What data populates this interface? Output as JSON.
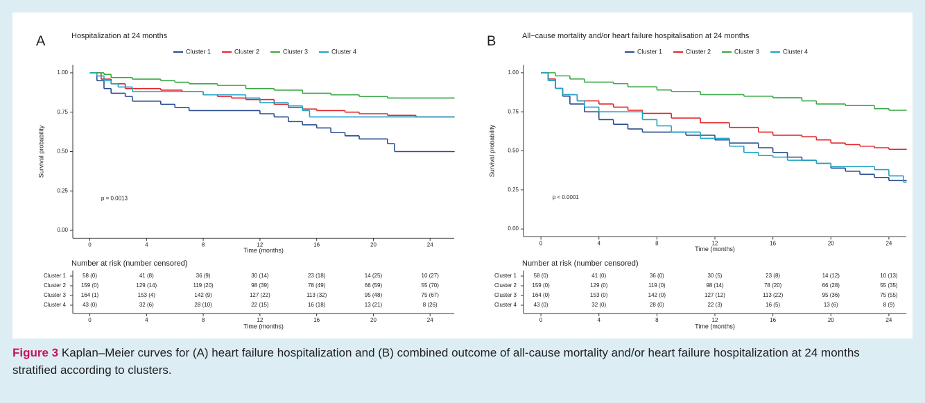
{
  "chart_data": [
    {
      "type": "line",
      "step": true,
      "panel": "A",
      "title": "Hospitalization at 24 months",
      "x_label": "Time (months)",
      "y_label": "Survival probability",
      "annotation": "p = 0.0013",
      "legend": "top",
      "xlim": [
        -1.2,
        25.7
      ],
      "ylim": [
        -0.05,
        1.05
      ],
      "xticks": [
        0,
        4,
        8,
        12,
        16,
        20,
        24
      ],
      "yticks": [
        {
          "value": 0,
          "label": "0.00"
        },
        {
          "value": 0.25,
          "label": "0.25"
        },
        {
          "value": 0.5,
          "label": "0.50"
        },
        {
          "value": 0.75,
          "label": "0.75"
        },
        {
          "value": 1,
          "label": "1.00"
        }
      ],
      "series": [
        {
          "name": "Cluster 1",
          "color": "#2a4d8f",
          "x": [
            0,
            0.5,
            1,
            1.5,
            2.5,
            3,
            5,
            6,
            7,
            12,
            13,
            14,
            15,
            16,
            17,
            18,
            19,
            21,
            21.5,
            25.7
          ],
          "values": [
            1,
            0.95,
            0.9,
            0.87,
            0.85,
            0.82,
            0.8,
            0.78,
            0.76,
            0.74,
            0.72,
            0.69,
            0.67,
            0.65,
            0.62,
            0.6,
            0.58,
            0.55,
            0.5,
            0.5
          ]
        },
        {
          "name": "Cluster 2",
          "color": "#e3262b",
          "x": [
            0,
            0.8,
            1.5,
            2.5,
            5,
            6.5,
            8,
            9,
            10,
            11,
            13,
            14,
            15,
            16,
            18,
            19,
            21,
            23,
            25.7
          ],
          "values": [
            1,
            0.96,
            0.93,
            0.9,
            0.89,
            0.88,
            0.86,
            0.85,
            0.84,
            0.83,
            0.8,
            0.78,
            0.77,
            0.76,
            0.75,
            0.74,
            0.73,
            0.72,
            0.72
          ]
        },
        {
          "name": "Cluster 3",
          "color": "#3aa845",
          "x": [
            0,
            1,
            1.5,
            3,
            5,
            6,
            7,
            9,
            11,
            13,
            15,
            17,
            19,
            21,
            25.7
          ],
          "values": [
            1,
            0.99,
            0.97,
            0.96,
            0.95,
            0.94,
            0.93,
            0.92,
            0.9,
            0.89,
            0.87,
            0.86,
            0.85,
            0.84,
            0.84
          ]
        },
        {
          "name": "Cluster 4",
          "color": "#1fa3c7",
          "x": [
            0,
            0.5,
            1,
            1.5,
            2,
            3,
            8,
            11,
            12,
            14,
            15,
            15.5,
            25.7
          ],
          "values": [
            1,
            0.98,
            0.95,
            0.93,
            0.91,
            0.88,
            0.86,
            0.84,
            0.81,
            0.79,
            0.76,
            0.72,
            0.72
          ]
        }
      ],
      "risk_table": {
        "title": "Number at risk (number censored)",
        "rows": [
          [
            "58 (0)",
            "41 (8)",
            "36 (9)",
            "30 (14)",
            "23 (18)",
            "14 (25)",
            "10 (27)"
          ],
          [
            "159 (0)",
            "129 (14)",
            "119 (20)",
            "98 (39)",
            "78 (49)",
            "66 (59)",
            "55 (70)"
          ],
          [
            "164 (1)",
            "153 (4)",
            "142 (9)",
            "127 (22)",
            "113 (32)",
            "95 (48)",
            "75 (67)"
          ],
          [
            "43 (0)",
            "32 (6)",
            "28 (10)",
            "22 (15)",
            "16 (18)",
            "13 (21)",
            "8 (26)"
          ]
        ]
      }
    },
    {
      "type": "line",
      "step": true,
      "panel": "B",
      "title": "All−cause mortality and/or heart failure hospitalisation at 24 months",
      "x_label": "Time (months)",
      "y_label": "Survival probability",
      "annotation": "p < 0.0001",
      "legend": "top",
      "xlim": [
        -1.2,
        25.2
      ],
      "ylim": [
        -0.05,
        1.05
      ],
      "xticks": [
        0,
        4,
        8,
        12,
        16,
        20,
        24
      ],
      "yticks": [
        {
          "value": 0,
          "label": "0.00"
        },
        {
          "value": 0.25,
          "label": "0.25"
        },
        {
          "value": 0.5,
          "label": "0.50"
        },
        {
          "value": 0.75,
          "label": "0.75"
        },
        {
          "value": 1,
          "label": "1.00"
        }
      ],
      "series": [
        {
          "name": "Cluster 1",
          "color": "#2a4d8f",
          "x": [
            0,
            0.5,
            1,
            1.5,
            2,
            3,
            4,
            5,
            6,
            7,
            10,
            12,
            13,
            15,
            16,
            17,
            18,
            19,
            20,
            21,
            22,
            23,
            24,
            25.2
          ],
          "values": [
            1,
            0.95,
            0.9,
            0.85,
            0.8,
            0.75,
            0.7,
            0.67,
            0.64,
            0.62,
            0.6,
            0.57,
            0.55,
            0.52,
            0.49,
            0.46,
            0.44,
            0.42,
            0.39,
            0.37,
            0.35,
            0.33,
            0.31,
            0.31
          ]
        },
        {
          "name": "Cluster 2",
          "color": "#e3262b",
          "x": [
            0,
            0.5,
            1,
            1.5,
            2.5,
            4,
            5,
            6,
            7,
            9,
            11,
            13,
            15,
            16,
            18,
            19,
            20,
            21,
            22,
            23,
            24,
            25.2
          ],
          "values": [
            1,
            0.96,
            0.9,
            0.86,
            0.82,
            0.8,
            0.78,
            0.76,
            0.74,
            0.71,
            0.68,
            0.65,
            0.62,
            0.6,
            0.59,
            0.57,
            0.55,
            0.54,
            0.53,
            0.52,
            0.51,
            0.51
          ]
        },
        {
          "name": "Cluster 3",
          "color": "#3aa845",
          "x": [
            0,
            1,
            2,
            3,
            5,
            6,
            8,
            9,
            11,
            14,
            16,
            18,
            19,
            21,
            23,
            24,
            25.2
          ],
          "values": [
            1,
            0.98,
            0.96,
            0.94,
            0.93,
            0.91,
            0.89,
            0.88,
            0.86,
            0.85,
            0.84,
            0.82,
            0.8,
            0.79,
            0.77,
            0.76,
            0.76
          ]
        },
        {
          "name": "Cluster 4",
          "color": "#1fa3c7",
          "x": [
            0,
            0.5,
            1,
            1.5,
            2.5,
            3,
            4,
            7,
            8,
            9,
            11,
            13,
            14,
            15,
            16,
            17,
            19,
            20,
            23,
            24,
            25,
            25.2
          ],
          "values": [
            1,
            0.95,
            0.9,
            0.86,
            0.82,
            0.78,
            0.75,
            0.7,
            0.66,
            0.62,
            0.58,
            0.53,
            0.49,
            0.47,
            0.46,
            0.44,
            0.42,
            0.4,
            0.38,
            0.34,
            0.3,
            0.3
          ]
        }
      ],
      "risk_table": {
        "title": "Number at risk (number censored)",
        "rows": [
          [
            "58 (0)",
            "41 (0)",
            "36 (0)",
            "30 (5)",
            "23 (8)",
            "14 (12)",
            "10 (13)"
          ],
          [
            "159 (0)",
            "129 (0)",
            "119 (0)",
            "98 (14)",
            "78 (20)",
            "66 (28)",
            "55 (35)"
          ],
          [
            "164 (0)",
            "153 (0)",
            "142 (0)",
            "127 (12)",
            "113 (22)",
            "95 (36)",
            "75 (55)"
          ],
          [
            "43 (0)",
            "32 (0)",
            "28 (0)",
            "22 (3)",
            "16 (5)",
            "13 (6)",
            "8 (9)"
          ]
        ]
      }
    }
  ],
  "caption": {
    "label": "Figure 3",
    "text": "Kaplan–Meier curves for (A) heart failure hospitalization and (B) combined outcome of all-cause mortality and/or heart failure hospitalization at 24 months stratified according to clusters."
  }
}
